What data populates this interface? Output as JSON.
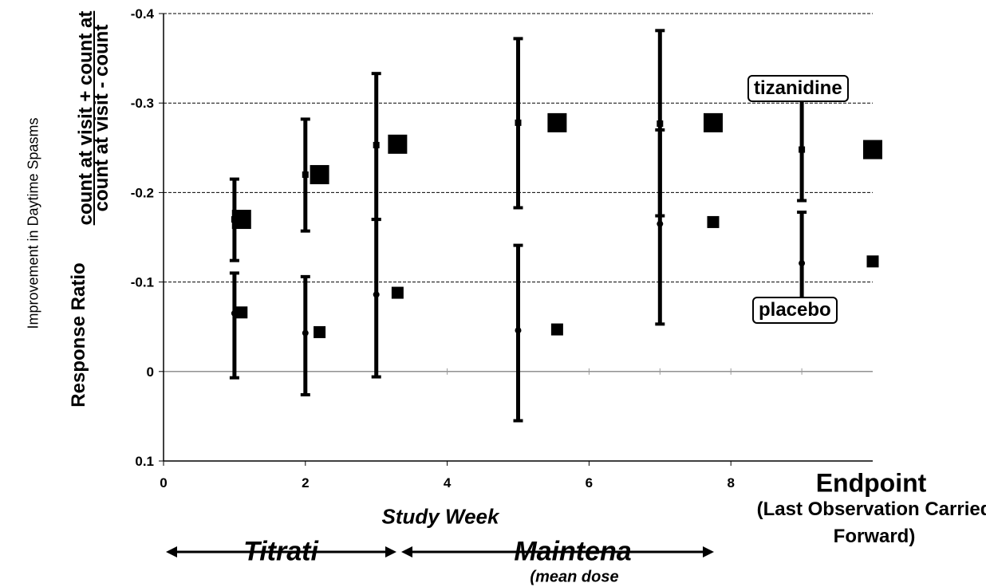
{
  "chart_data": {
    "type": "scatter",
    "ylabel_line1": "Improvement in Daytime Spasms",
    "ylabel_line2": "Response Ratio",
    "ylabel_numerator": "count at visit + count at",
    "ylabel_denominator": "count at visit - count",
    "xlabel": "Study Week",
    "x_ticks": [
      "0",
      "2",
      "4",
      "6",
      "8"
    ],
    "y_ticks": [
      "-0.4",
      "-0.3",
      "-0.2",
      "-0.1",
      "0",
      "0.1"
    ],
    "xlim": [
      0,
      10
    ],
    "ylim": [
      -0.4,
      0.1
    ],
    "y_axis_reversed": true,
    "gridlines": "horizontal dashed",
    "endpoint_tick": "Endpoint",
    "endpoint_note": "(Last Observation Carried Forward)",
    "phases": [
      {
        "label": "Titrati",
        "x_range": [
          0,
          3.3
        ]
      },
      {
        "label": "Maintena",
        "x_range": [
          3.4,
          7.8
        ],
        "sublabel": "(mean dose"
      }
    ],
    "series": [
      {
        "name": "tizanidine",
        "points": [
          {
            "x": 1,
            "y": -0.17,
            "err_low": -0.124,
            "err_high": -0.215
          },
          {
            "x": 2,
            "y": -0.22,
            "err_low": -0.157,
            "err_high": -0.282
          },
          {
            "x": 3,
            "y": -0.253,
            "err_low": -0.17,
            "err_high": -0.333
          },
          {
            "x": 5,
            "y": -0.278,
            "err_low": -0.183,
            "err_high": -0.372
          },
          {
            "x": 7,
            "y": -0.277,
            "err_low": -0.174,
            "err_high": -0.381
          },
          {
            "x": 9,
            "y": -0.248,
            "err_low": -0.191,
            "err_high": -0.305
          }
        ],
        "markers": [
          {
            "x": 1.1,
            "y": -0.17
          },
          {
            "x": 2.2,
            "y": -0.22
          },
          {
            "x": 3.3,
            "y": -0.254
          },
          {
            "x": 5.55,
            "y": -0.278
          },
          {
            "x": 7.75,
            "y": -0.278
          },
          {
            "x": 10,
            "y": -0.248
          }
        ]
      },
      {
        "name": "placebo",
        "points": [
          {
            "x": 1,
            "y": -0.065,
            "err_low": 0.007,
            "err_high": -0.11
          },
          {
            "x": 2,
            "y": -0.043,
            "err_low": 0.026,
            "err_high": -0.106
          },
          {
            "x": 3,
            "y": -0.086,
            "err_low": 0.006,
            "err_high": -0.17
          },
          {
            "x": 5,
            "y": -0.046,
            "err_low": 0.055,
            "err_high": -0.141
          },
          {
            "x": 7,
            "y": -0.165,
            "err_low": -0.053,
            "err_high": -0.27
          },
          {
            "x": 9,
            "y": -0.121,
            "err_low": -0.063,
            "err_high": -0.178
          }
        ],
        "markers": [
          {
            "x": 1.1,
            "y": -0.066
          },
          {
            "x": 2.2,
            "y": -0.044
          },
          {
            "x": 3.3,
            "y": -0.088
          },
          {
            "x": 5.55,
            "y": -0.047
          },
          {
            "x": 7.75,
            "y": -0.167
          },
          {
            "x": 10,
            "y": -0.123
          }
        ]
      }
    ]
  }
}
